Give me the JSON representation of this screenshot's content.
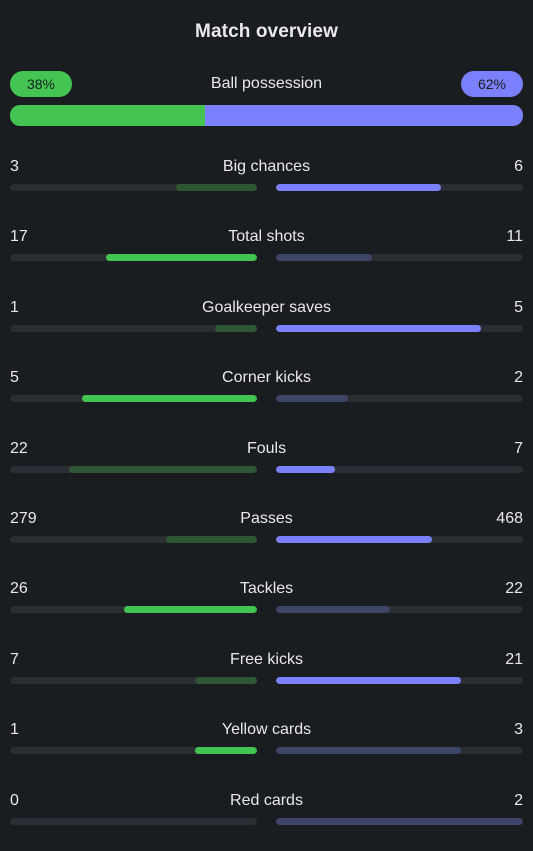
{
  "title": "Match overview",
  "colors": {
    "home_strong": "#44c553",
    "home_weak": "#2f5634",
    "away_strong": "#7b80ff",
    "away_weak": "#3f4469",
    "track": "#2a2e32"
  },
  "possession": {
    "label": "Ball possession",
    "home": "38%",
    "away": "62%",
    "home_fraction": 0.38,
    "away_fraction": 0.62
  },
  "stats": [
    {
      "label": "Big chances",
      "home": "3",
      "away": "6",
      "home_fraction": 0.33,
      "away_fraction": 0.67,
      "leader": "away"
    },
    {
      "label": "Total shots",
      "home": "17",
      "away": "11",
      "home_fraction": 0.61,
      "away_fraction": 0.39,
      "leader": "home"
    },
    {
      "label": "Goalkeeper saves",
      "home": "1",
      "away": "5",
      "home_fraction": 0.17,
      "away_fraction": 0.83,
      "leader": "away"
    },
    {
      "label": "Corner kicks",
      "home": "5",
      "away": "2",
      "home_fraction": 0.71,
      "away_fraction": 0.29,
      "leader": "home"
    },
    {
      "label": "Fouls",
      "home": "22",
      "away": "7",
      "home_fraction": 0.76,
      "away_fraction": 0.24,
      "leader": "away"
    },
    {
      "label": "Passes",
      "home": "279",
      "away": "468",
      "home_fraction": 0.37,
      "away_fraction": 0.63,
      "leader": "away"
    },
    {
      "label": "Tackles",
      "home": "26",
      "away": "22",
      "home_fraction": 0.54,
      "away_fraction": 0.46,
      "leader": "home"
    },
    {
      "label": "Free kicks",
      "home": "7",
      "away": "21",
      "home_fraction": 0.25,
      "away_fraction": 0.75,
      "leader": "away"
    },
    {
      "label": "Yellow cards",
      "home": "1",
      "away": "3",
      "home_fraction": 0.25,
      "away_fraction": 0.75,
      "leader": "home"
    },
    {
      "label": "Red cards",
      "home": "0",
      "away": "2",
      "home_fraction": 0.0,
      "away_fraction": 1.0,
      "leader": "home"
    }
  ]
}
